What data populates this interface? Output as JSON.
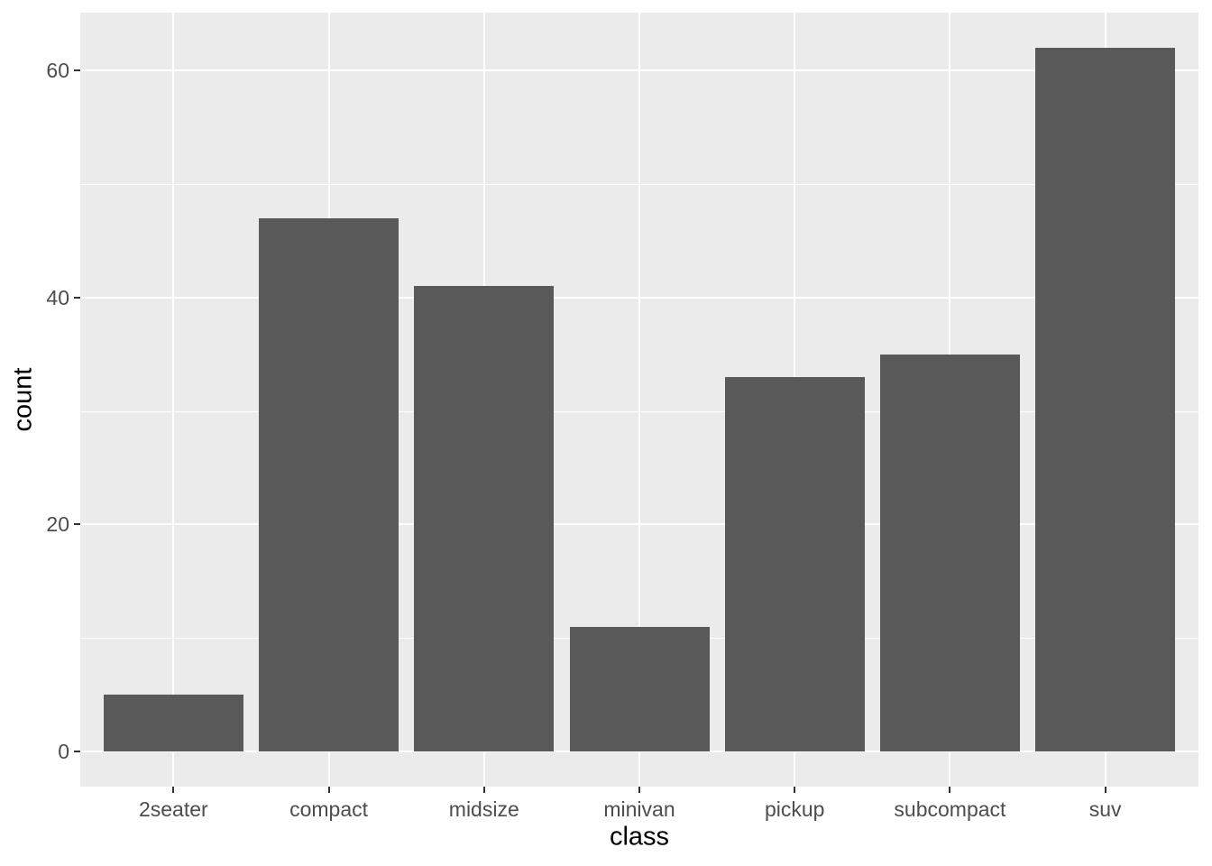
{
  "chart_data": {
    "type": "bar",
    "title": "",
    "xlabel": "class",
    "ylabel": "count",
    "categories": [
      "2seater",
      "compact",
      "midsize",
      "minivan",
      "pickup",
      "subcompact",
      "suv"
    ],
    "values": [
      5,
      47,
      41,
      11,
      33,
      35,
      62
    ],
    "yticks": [
      0,
      20,
      40,
      60
    ],
    "yticks_minor": [
      10,
      30,
      50
    ],
    "ylim": [
      0,
      62
    ],
    "y_expansion_mult": 0.05,
    "x_expansion_add": 0.6,
    "bar_width": 0.9,
    "grid": "on",
    "legend": "none",
    "style": "ggplot2-theme-grey",
    "colors": {
      "bar_fill": "#595959",
      "panel_background": "#EBEBEB",
      "gridline": "#FFFFFF",
      "tick_label": "#4D4D4D",
      "axis_title": "#000000",
      "tick_mark": "#333333",
      "outer_background": "#FFFFFF"
    }
  }
}
